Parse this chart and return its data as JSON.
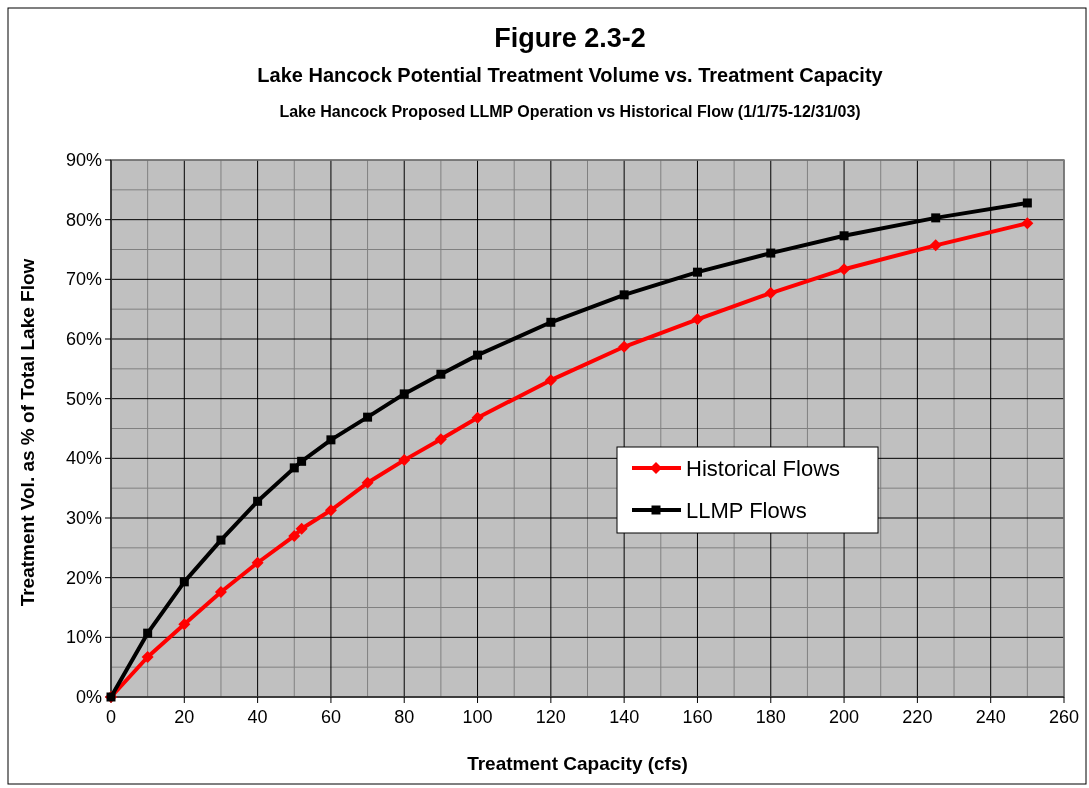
{
  "chart_data": {
    "type": "line",
    "title": "Figure 2.3-2",
    "subtitle": "Lake Hancock Potential Treatment Volume vs. Treatment Capacity",
    "annotations": [
      "Lake Hancock Proposed LLMP Operation vs Historical Flow (1/1/75-12/31/03)"
    ],
    "xlabel": "Treatment Capacity (cfs)",
    "ylabel": "Treatment Vol. as % of Total Lake Flow",
    "xlim": [
      0,
      260
    ],
    "xticks": [
      0,
      20,
      40,
      60,
      80,
      100,
      120,
      140,
      160,
      180,
      200,
      220,
      240,
      260
    ],
    "ylim": [
      0,
      90
    ],
    "yticks": [
      {
        "value": 0,
        "label": "0%"
      },
      {
        "value": 10,
        "label": "10%"
      },
      {
        "value": 20,
        "label": "20%"
      },
      {
        "value": 30,
        "label": "30%"
      },
      {
        "value": 40,
        "label": "40%"
      },
      {
        "value": 50,
        "label": "50%"
      },
      {
        "value": 60,
        "label": "60%"
      },
      {
        "value": 70,
        "label": "70%"
      },
      {
        "value": 80,
        "label": "80%"
      },
      {
        "value": 90,
        "label": "90%"
      }
    ],
    "grid": true,
    "legend": "right",
    "series": [
      {
        "name": "Historical Flows",
        "color": "#ff0000",
        "marker": "diamond",
        "x": [
          0,
          10,
          20,
          30,
          40,
          50,
          52,
          60,
          70,
          80,
          90,
          100,
          120,
          140,
          160,
          180,
          200,
          225,
          250
        ],
        "values": [
          0,
          6.7,
          12.2,
          17.6,
          22.5,
          27,
          28.2,
          31.3,
          35.9,
          39.7,
          43.2,
          46.8,
          53.1,
          58.7,
          63.3,
          67.7,
          71.7,
          75.7,
          79.4
        ]
      },
      {
        "name": "LLMP Flows",
        "color": "#000000",
        "marker": "square",
        "x": [
          0,
          10,
          20,
          30,
          40,
          50,
          52,
          60,
          70,
          80,
          90,
          100,
          120,
          140,
          160,
          180,
          200,
          225,
          250
        ],
        "values": [
          0,
          10.7,
          19.3,
          26.3,
          32.8,
          38.4,
          39.5,
          43.1,
          46.9,
          50.8,
          54.1,
          57.3,
          62.8,
          67.4,
          71.2,
          74.4,
          77.3,
          80.3,
          82.8
        ]
      }
    ]
  }
}
